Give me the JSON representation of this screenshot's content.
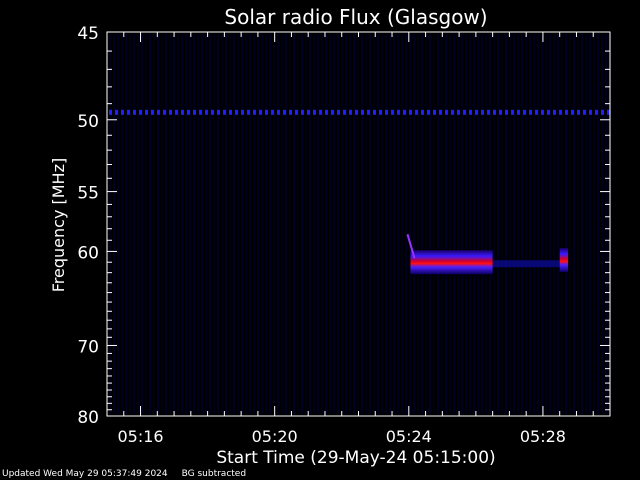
{
  "chart_data": {
    "type": "heatmap",
    "title": "Solar radio Flux (Glasgow)",
    "xlabel": "Start Time (29-May-24 05:15:00)",
    "ylabel": "Frequency [MHz]",
    "x_ticks": [
      "05:16",
      "05:20",
      "05:24",
      "05:28"
    ],
    "x_tick_minutes": [
      16,
      20,
      24,
      28
    ],
    "xlim_minutes": [
      15.0,
      30.0
    ],
    "y_ticks": [
      45,
      50,
      55,
      60,
      70,
      80
    ],
    "ylim": [
      80,
      45
    ],
    "y_scale": "reciprocal",
    "grid": false,
    "colors": {
      "background": "#000000",
      "axis": "#ffffff",
      "low": "#0000ff",
      "mid": "#8000ff",
      "high": "#ff0000"
    },
    "features": [
      {
        "name": "interference line",
        "freq_mhz": 49.5,
        "t_start_min": 15.0,
        "t_end_min": 30.0,
        "intensity": "low"
      },
      {
        "name": "burst",
        "freq_mhz": 61.0,
        "t_start_min": 24.05,
        "t_end_min": 26.5,
        "intensity": "high"
      },
      {
        "name": "burst tail",
        "freq_mhz": 61.1,
        "t_start_min": 26.5,
        "t_end_min": 28.5,
        "intensity": "low"
      },
      {
        "name": "burst",
        "freq_mhz": 60.8,
        "t_start_min": 28.5,
        "t_end_min": 28.75,
        "intensity": "high"
      }
    ]
  },
  "footer": {
    "updated": "Updated Wed May 29 05:37:49 2024",
    "bg_note": "BG subtracted"
  }
}
